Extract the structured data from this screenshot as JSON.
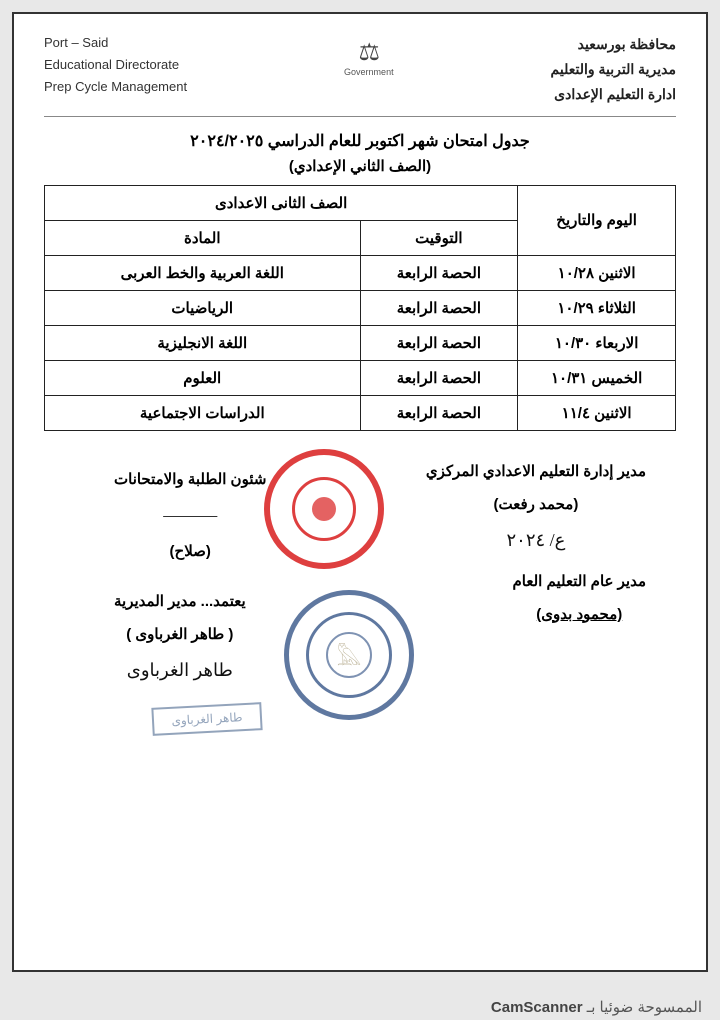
{
  "header": {
    "left_line1": "Port – Said",
    "left_line2": "Educational Directorate",
    "left_line3": "Prep Cycle Management",
    "logo_top": "⚖",
    "logo_text": "Government",
    "right_line1": "محافظة بورسعيد",
    "right_line2": "مديرية التربية والتعليم",
    "right_line3": "ادارة التعليم الإعدادى"
  },
  "title": {
    "main": "جدول امتحان شهر اكتوبر للعام الدراسي ٢٠٢٤/٢٠٢٥",
    "sub": "(الصف الثاني الإعدادي)"
  },
  "table": {
    "grade_header": "الصف الثانى الاعدادى",
    "col_date": "اليوم والتاريخ",
    "col_time": "التوقيت",
    "col_subject": "المادة",
    "rows": [
      {
        "date": "الاثنين ١٠/٢٨",
        "time": "الحصة الرابعة",
        "subject": "اللغة العربية والخط العربى"
      },
      {
        "date": "الثلاثاء ١٠/٢٩",
        "time": "الحصة الرابعة",
        "subject": "الرياضيات"
      },
      {
        "date": "الاربعاء ١٠/٣٠",
        "time": "الحصة الرابعة",
        "subject": "اللغة الانجليزية"
      },
      {
        "date": "الخميس ١٠/٣١",
        "time": "الحصة الرابعة",
        "subject": "العلوم"
      },
      {
        "date": "الاثنين ١١/٤",
        "time": "الحصة الرابعة",
        "subject": "الدراسات الاجتماعية"
      }
    ]
  },
  "signatures": {
    "s1_title": "مدير إدارة التعليم الاعدادي المركزي",
    "s1_name": "(محمد رفعت)",
    "s2_title": "شئون الطلبة والامتحانات",
    "s2_name": "(صلاح)",
    "s3_title": "مدير عام التعليم العام",
    "s3_name": "(محمود بدوى)",
    "s4_title": "يعتمد... مدير المديرية",
    "s4_name": "( طاهر الغرباوى )",
    "rect_stamp": "طاهر الغرباوى"
  },
  "footer": {
    "text": "الممسوحة ضوئيا بـ",
    "brand": "CamScanner"
  },
  "colors": {
    "page_bg": "#ffffff",
    "outer_bg": "#e8e8e8",
    "border": "#333333",
    "text": "#222222",
    "stamp_red": "#d92020",
    "stamp_blue": "#2a4b80"
  }
}
